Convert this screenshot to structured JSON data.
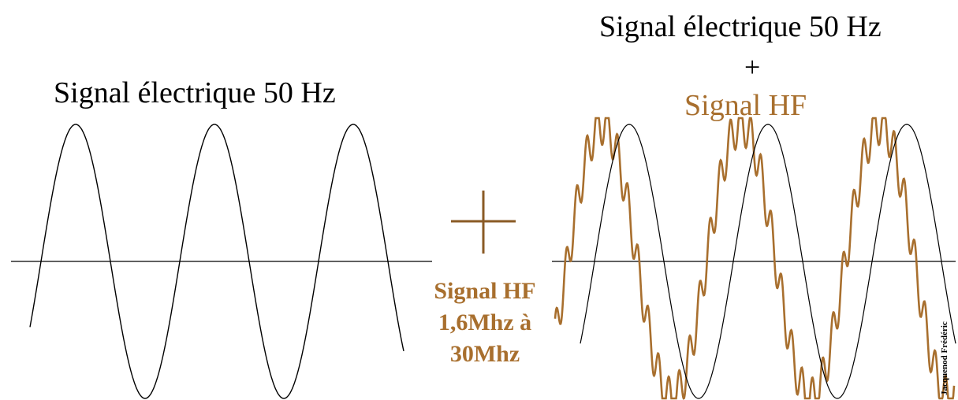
{
  "labels": {
    "left_title": "Signal électrique 50 Hz",
    "right_title": "Signal électrique 50 Hz",
    "right_plus": "+",
    "right_hf": "Signal HF",
    "hf_caption_line1": "Signal HF",
    "hf_caption_line2": "1,6Mhz à",
    "hf_caption_line3": "30Mhz",
    "signature": "Jacquenod Frédéric"
  },
  "colors": {
    "sine": "#000000",
    "hf": "#a86f2e",
    "plus": "#8a5a25",
    "axis": "#000000"
  },
  "signals": {
    "electric_frequency_hz": 50,
    "hf_range": "1,6Mhz à 30Mhz"
  }
}
